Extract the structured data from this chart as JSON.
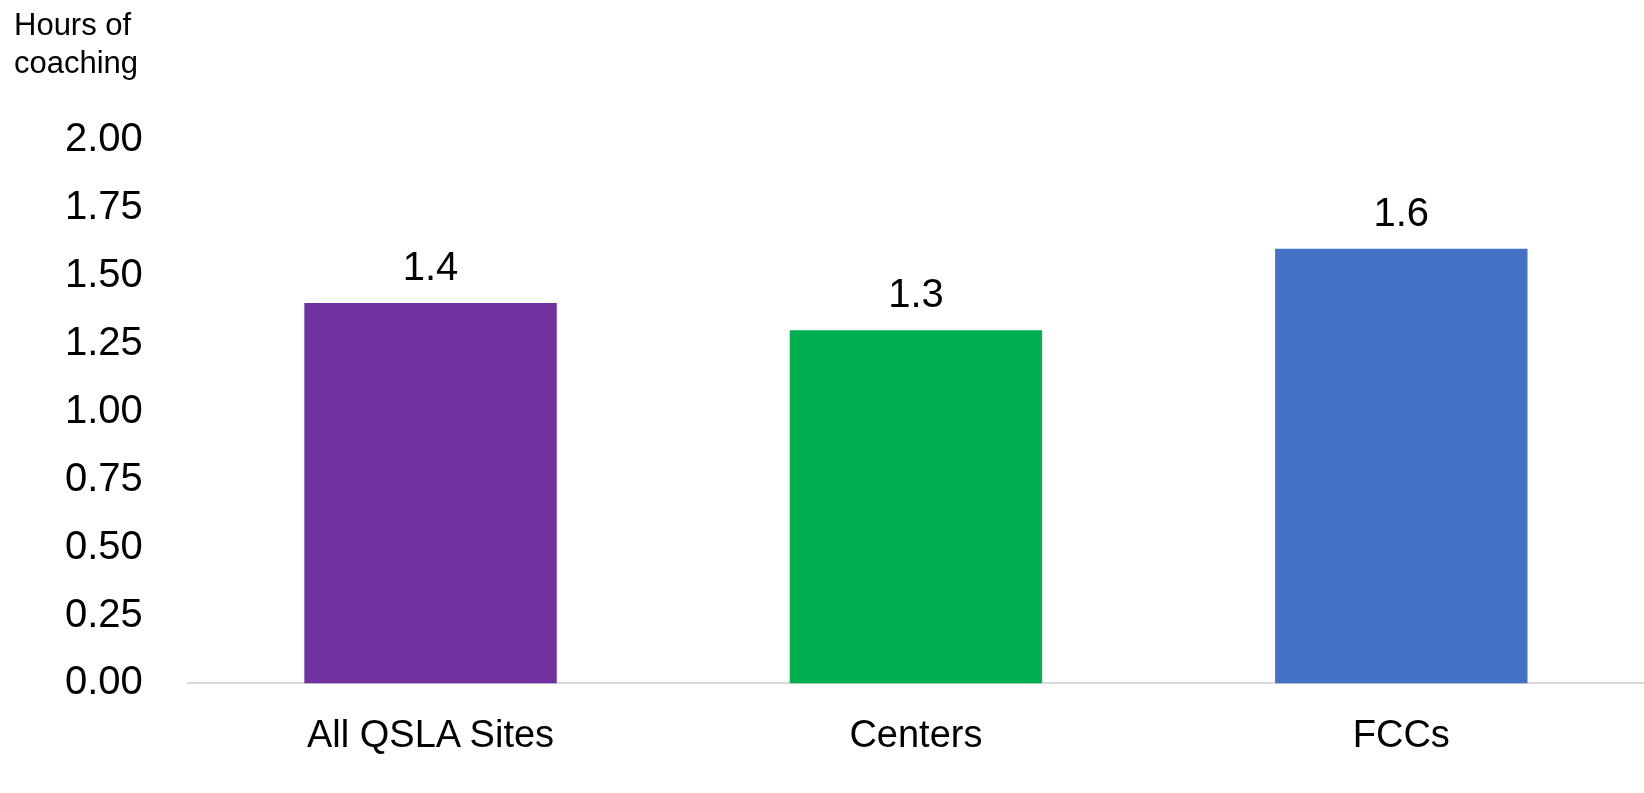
{
  "chart_data": {
    "type": "bar",
    "ylabel": "Hours of coaching",
    "categories": [
      "All QSLA Sites",
      "Centers",
      "FCCs"
    ],
    "values": [
      1.4,
      1.3,
      1.6
    ],
    "colors": [
      "#7030a0",
      "#00b050",
      "#4472c4"
    ],
    "ylim": [
      0,
      2
    ],
    "yticks": [
      {
        "value": 0,
        "label": "0.00"
      },
      {
        "value": 0.25,
        "label": "0.25"
      },
      {
        "value": 0.5,
        "label": "0.50"
      },
      {
        "value": 0.75,
        "label": "0.75"
      },
      {
        "value": 1,
        "label": "1.00"
      },
      {
        "value": 1.25,
        "label": "1.25"
      },
      {
        "value": 1.5,
        "label": "1.50"
      },
      {
        "value": 1.75,
        "label": "1.75"
      },
      {
        "value": 2,
        "label": "2.00"
      }
    ],
    "grid": false,
    "legend": false,
    "data_labels": true
  }
}
